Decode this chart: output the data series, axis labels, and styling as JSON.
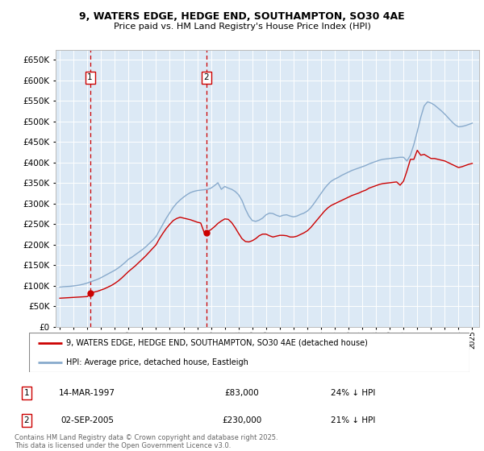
{
  "title_line1": "9, WATERS EDGE, HEDGE END, SOUTHAMPTON, SO30 4AE",
  "title_line2": "Price paid vs. HM Land Registry's House Price Index (HPI)",
  "plot_bg_color": "#dce9f5",
  "ylim": [
    0,
    675000
  ],
  "yticks": [
    0,
    50000,
    100000,
    150000,
    200000,
    250000,
    300000,
    350000,
    400000,
    450000,
    500000,
    550000,
    600000,
    650000
  ],
  "xlim_start": 1994.7,
  "xlim_end": 2025.5,
  "sale1_date": 1997.2,
  "sale1_price": 83000,
  "sale2_date": 2005.67,
  "sale2_price": 230000,
  "legend_label_red": "9, WATERS EDGE, HEDGE END, SOUTHAMPTON, SO30 4AE (detached house)",
  "legend_label_blue": "HPI: Average price, detached house, Eastleigh",
  "annotation1_date": "14-MAR-1997",
  "annotation1_price": "£83,000",
  "annotation1_hpi": "24% ↓ HPI",
  "annotation2_date": "02-SEP-2005",
  "annotation2_price": "£230,000",
  "annotation2_hpi": "21% ↓ HPI",
  "footer": "Contains HM Land Registry data © Crown copyright and database right 2025.\nThis data is licensed under the Open Government Licence v3.0.",
  "red_color": "#cc0000",
  "blue_color": "#88aacc",
  "hpi_years": [
    1995.0,
    1995.25,
    1995.5,
    1995.75,
    1996.0,
    1996.25,
    1996.5,
    1996.75,
    1997.0,
    1997.25,
    1997.5,
    1997.75,
    1998.0,
    1998.25,
    1998.5,
    1998.75,
    1999.0,
    1999.25,
    1999.5,
    1999.75,
    2000.0,
    2000.25,
    2000.5,
    2000.75,
    2001.0,
    2001.25,
    2001.5,
    2001.75,
    2002.0,
    2002.25,
    2002.5,
    2002.75,
    2003.0,
    2003.25,
    2003.5,
    2003.75,
    2004.0,
    2004.25,
    2004.5,
    2004.75,
    2005.0,
    2005.25,
    2005.5,
    2005.75,
    2006.0,
    2006.25,
    2006.5,
    2006.75,
    2007.0,
    2007.25,
    2007.5,
    2007.75,
    2008.0,
    2008.25,
    2008.5,
    2008.75,
    2009.0,
    2009.25,
    2009.5,
    2009.75,
    2010.0,
    2010.25,
    2010.5,
    2010.75,
    2011.0,
    2011.25,
    2011.5,
    2011.75,
    2012.0,
    2012.25,
    2012.5,
    2012.75,
    2013.0,
    2013.25,
    2013.5,
    2013.75,
    2014.0,
    2014.25,
    2014.5,
    2014.75,
    2015.0,
    2015.25,
    2015.5,
    2015.75,
    2016.0,
    2016.25,
    2016.5,
    2016.75,
    2017.0,
    2017.25,
    2017.5,
    2017.75,
    2018.0,
    2018.25,
    2018.5,
    2018.75,
    2019.0,
    2019.25,
    2019.5,
    2019.75,
    2020.0,
    2020.25,
    2020.5,
    2020.75,
    2021.0,
    2021.25,
    2021.5,
    2021.75,
    2022.0,
    2022.25,
    2022.5,
    2022.75,
    2023.0,
    2023.25,
    2023.5,
    2023.75,
    2024.0,
    2024.25,
    2024.5,
    2024.75,
    2025.0
  ],
  "hpi_values": [
    97000,
    98000,
    98500,
    99000,
    100000,
    101000,
    102500,
    104500,
    107000,
    110000,
    113000,
    116000,
    120000,
    124500,
    129000,
    133500,
    138000,
    143500,
    150000,
    157000,
    165000,
    170000,
    176000,
    182000,
    188000,
    195000,
    203000,
    211000,
    220000,
    235000,
    250000,
    265000,
    278000,
    291000,
    301000,
    309000,
    316000,
    322000,
    327000,
    330000,
    332000,
    333000,
    334000,
    335000,
    338000,
    344000,
    351000,
    335000,
    342000,
    338000,
    335000,
    330000,
    322000,
    308000,
    287000,
    270000,
    259000,
    257000,
    260000,
    265000,
    273000,
    277000,
    276000,
    272000,
    269000,
    272000,
    273000,
    270000,
    268000,
    270000,
    274000,
    277000,
    282000,
    290000,
    301000,
    313000,
    325000,
    337000,
    347000,
    355000,
    360000,
    364000,
    369000,
    373000,
    377000,
    381000,
    384000,
    387000,
    390000,
    393000,
    397000,
    400000,
    403000,
    406000,
    408000,
    409000,
    410000,
    411000,
    412000,
    413000,
    413000,
    404000,
    418000,
    444000,
    476000,
    510000,
    538000,
    548000,
    545000,
    540000,
    533000,
    526000,
    518000,
    509000,
    500000,
    492000,
    487000,
    488000,
    490000,
    493000,
    496000
  ],
  "property_years": [
    1995.0,
    1995.25,
    1995.5,
    1995.75,
    1996.0,
    1996.25,
    1996.5,
    1996.75,
    1997.0,
    1997.25,
    1997.5,
    1997.75,
    1998.0,
    1998.25,
    1998.5,
    1998.75,
    1999.0,
    1999.25,
    1999.5,
    1999.75,
    2000.0,
    2000.25,
    2000.5,
    2000.75,
    2001.0,
    2001.25,
    2001.5,
    2001.75,
    2002.0,
    2002.25,
    2002.5,
    2002.75,
    2003.0,
    2003.25,
    2003.5,
    2003.75,
    2004.0,
    2004.25,
    2004.5,
    2004.75,
    2005.0,
    2005.25,
    2005.5,
    2005.75,
    2006.0,
    2006.25,
    2006.5,
    2006.75,
    2007.0,
    2007.25,
    2007.5,
    2007.75,
    2008.0,
    2008.25,
    2008.5,
    2008.75,
    2009.0,
    2009.25,
    2009.5,
    2009.75,
    2010.0,
    2010.25,
    2010.5,
    2010.75,
    2011.0,
    2011.25,
    2011.5,
    2011.75,
    2012.0,
    2012.25,
    2012.5,
    2012.75,
    2013.0,
    2013.25,
    2013.5,
    2013.75,
    2014.0,
    2014.25,
    2014.5,
    2014.75,
    2015.0,
    2015.25,
    2015.5,
    2015.75,
    2016.0,
    2016.25,
    2016.5,
    2016.75,
    2017.0,
    2017.25,
    2017.5,
    2017.75,
    2018.0,
    2018.25,
    2018.5,
    2018.75,
    2019.0,
    2019.25,
    2019.5,
    2019.75,
    2020.0,
    2020.25,
    2020.5,
    2020.75,
    2021.0,
    2021.25,
    2021.5,
    2021.75,
    2022.0,
    2022.25,
    2022.5,
    2022.75,
    2023.0,
    2023.25,
    2023.5,
    2023.75,
    2024.0,
    2024.25,
    2024.5,
    2024.75,
    2025.0
  ],
  "property_values": [
    70000,
    70500,
    71000,
    71500,
    72000,
    72500,
    73000,
    73500,
    74000,
    83000,
    85000,
    87000,
    90000,
    93000,
    97000,
    101000,
    106000,
    112000,
    119000,
    127000,
    135000,
    142000,
    149000,
    157000,
    165000,
    173000,
    182000,
    191000,
    200000,
    215000,
    228000,
    240000,
    250000,
    259000,
    264000,
    267000,
    265000,
    263000,
    261000,
    258000,
    255000,
    253000,
    230000,
    232000,
    237000,
    244000,
    252000,
    258000,
    263000,
    262000,
    254000,
    242000,
    228000,
    215000,
    208000,
    207000,
    210000,
    215000,
    222000,
    226000,
    226000,
    222000,
    219000,
    221000,
    223000,
    223000,
    222000,
    219000,
    219000,
    221000,
    225000,
    229000,
    234000,
    242000,
    252000,
    262000,
    272000,
    282000,
    290000,
    296000,
    300000,
    304000,
    308000,
    312000,
    316000,
    320000,
    323000,
    326000,
    330000,
    333000,
    338000,
    341000,
    344000,
    347000,
    349000,
    350000,
    351000,
    352000,
    353000,
    345000,
    355000,
    380000,
    408000,
    408000,
    430000,
    418000,
    420000,
    415000,
    410000,
    410000,
    408000,
    406000,
    404000,
    400000,
    396000,
    392000,
    388000,
    390000,
    393000,
    396000,
    398000
  ]
}
